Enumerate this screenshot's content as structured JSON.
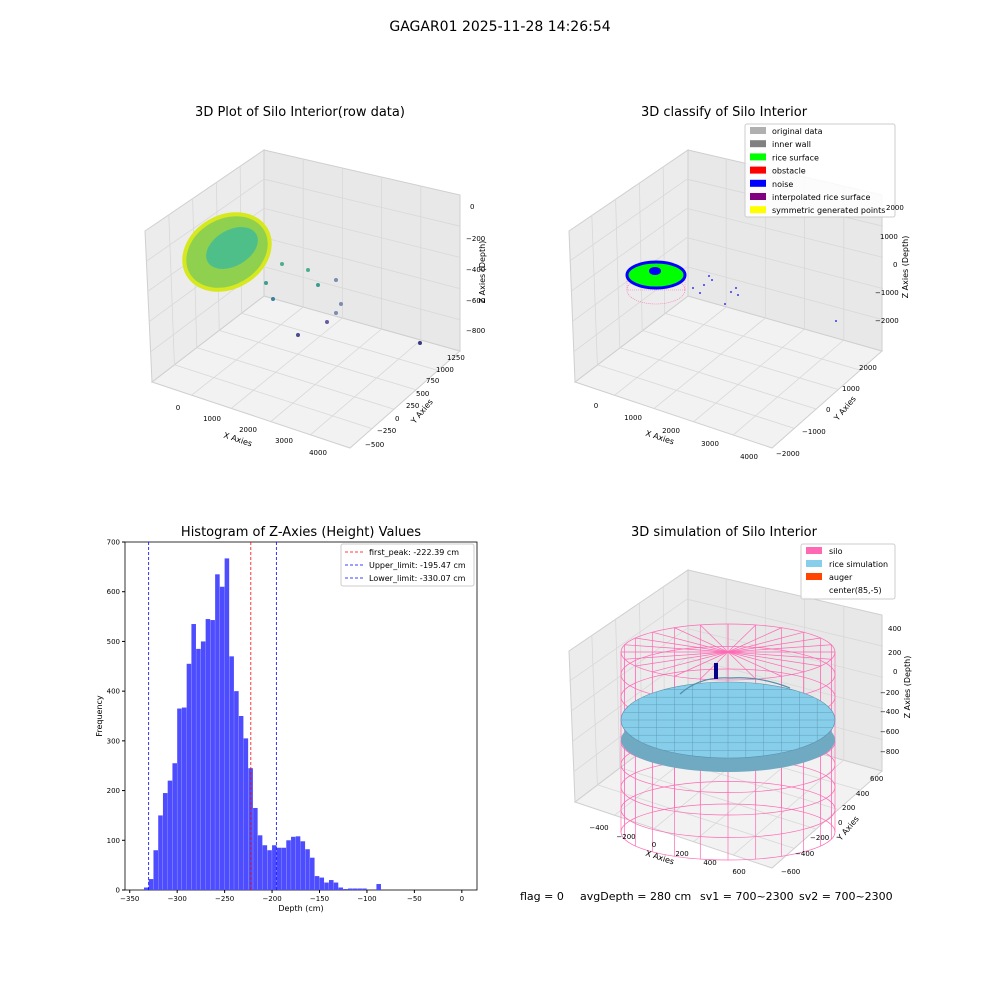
{
  "figure_title": "GAGAR01 2025-11-28 14:26:54",
  "status_line": {
    "flag": "flag = 0",
    "avg_depth": "avgDepth = 280 cm",
    "sv1": "sv1 = 700~2300",
    "sv2": "sv2 = 700~2300"
  },
  "colors": {
    "hist_bar": "#4d4dff",
    "first_peak": "#ff0000",
    "limits": "#0000ff",
    "silo": "#ff69b4",
    "rice": "#87ceeb",
    "auger": "#ff4500",
    "original": "#b0b0b0",
    "inner_wall": "#808080",
    "rice_surface": "#00ff00",
    "obstacle": "#ff0000",
    "noise": "#0000ff",
    "interp": "#800080",
    "symmetric": "#ffff00"
  },
  "chart_data": [
    {
      "type": "scatter",
      "title": "3D Plot of Silo Interior(row data)",
      "xlabel": "X Axies",
      "ylabel": "Y Axies",
      "zlabel": "Z Axies (Depth)",
      "x_ticks": [
        "0",
        "1000",
        "2000",
        "3000",
        "4000"
      ],
      "y_ticks": [
        "−500",
        "−250",
        "0",
        "250",
        "500",
        "750",
        "1000",
        "1250"
      ],
      "z_ticks": [
        "0",
        "−200",
        "−400",
        "−600",
        "−800"
      ]
    },
    {
      "type": "scatter",
      "title": "3D classify of Silo Interior",
      "xlabel": "X Axies",
      "ylabel": "Y Axies",
      "zlabel": "Z Axies (Depth)",
      "x_ticks": [
        "0",
        "1000",
        "2000",
        "3000",
        "4000"
      ],
      "y_ticks": [
        "−2000",
        "−1000",
        "0",
        "1000",
        "2000"
      ],
      "z_ticks": [
        "2000",
        "1000",
        "0",
        "−1000",
        "−2000"
      ],
      "legend": [
        "original data",
        "inner wall",
        "rice surface",
        "obstacle",
        "noise",
        "interpolated rice surface",
        "symmetric generated points"
      ]
    },
    {
      "type": "bar",
      "title": "Histogram of Z-Axies (Height) Values",
      "xlabel": "Depth (cm)",
      "ylabel": "Frequency",
      "xlim": [
        -350,
        0
      ],
      "ylim": [
        0,
        700
      ],
      "x_ticks": [
        -350,
        -300,
        -250,
        -200,
        -150,
        -100,
        -50,
        0
      ],
      "y_ticks": [
        0,
        100,
        200,
        300,
        400,
        500,
        600,
        700
      ],
      "bin_start": -335,
      "bin_width": 5,
      "values": [
        5,
        22,
        80,
        150,
        195,
        220,
        255,
        365,
        367,
        455,
        535,
        485,
        500,
        545,
        543,
        635,
        610,
        667,
        470,
        400,
        350,
        305,
        245,
        165,
        110,
        90,
        80,
        90,
        85,
        85,
        100,
        107,
        108,
        98,
        82,
        65,
        28,
        25,
        15,
        20,
        15,
        5,
        2,
        3,
        3,
        3,
        3,
        0,
        0,
        12
      ],
      "vlines": [
        {
          "value": -222.39,
          "label": "first_peak: -222.39 cm",
          "style": "red"
        },
        {
          "value": -195.47,
          "label": "Upper_limit: -195.47 cm",
          "style": "blue"
        },
        {
          "value": -330.07,
          "label": "Lower_limit: -330.07 cm",
          "style": "blue"
        }
      ],
      "legend_position": "top-right"
    },
    {
      "type": "surface",
      "title": "3D simulation of Silo Interior",
      "xlabel": "X Axies",
      "ylabel": "Y Axies",
      "zlabel": "Z Axies (Depth)",
      "x_ticks": [
        "−400",
        "−200",
        "0",
        "200",
        "400",
        "600"
      ],
      "y_ticks": [
        "−600",
        "−400",
        "−200",
        "0",
        "200",
        "400",
        "600"
      ],
      "z_ticks": [
        "400",
        "200",
        "0",
        "−200",
        "−400",
        "−600",
        "−800"
      ],
      "legend": [
        "silo",
        "rice simulation",
        "auger",
        "center(85,-5)"
      ]
    }
  ]
}
